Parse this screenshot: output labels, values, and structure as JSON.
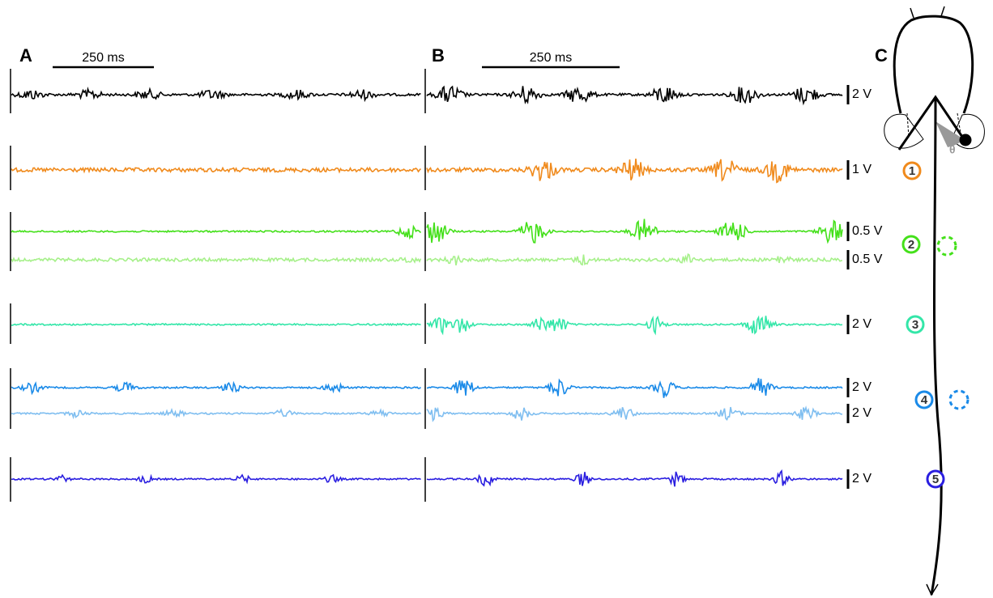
{
  "panels": [
    {
      "label": "A",
      "scale_bar": "250 ms"
    },
    {
      "label": "B",
      "scale_bar": "250 ms"
    },
    {
      "label": "C"
    }
  ],
  "scale_labels": [
    "2 V",
    "1 V",
    "0.5 V",
    "0.5 V",
    "2 V",
    "2 V",
    "2 V",
    "2 V"
  ],
  "electrodes": [
    "1",
    "2",
    "3",
    "4",
    "5"
  ],
  "angle_label": "θ"
}
